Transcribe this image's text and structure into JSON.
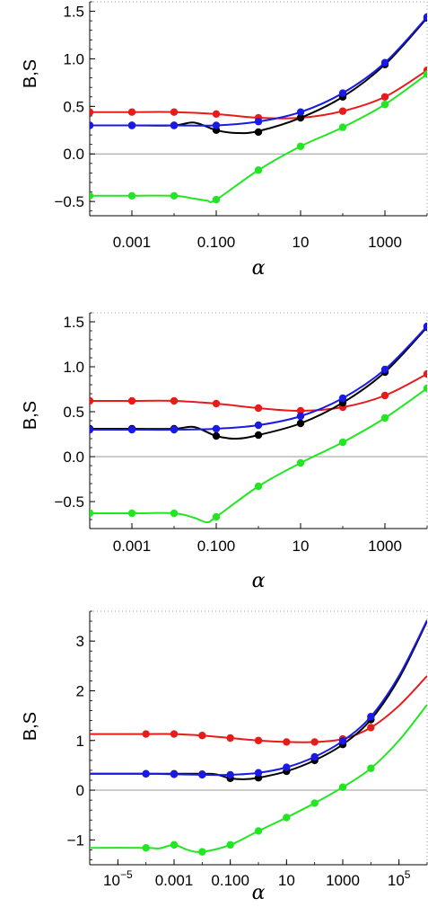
{
  "chart_data": [
    {
      "type": "line",
      "ylabel": "B,S",
      "xlabel": "α",
      "xscale": "log",
      "xlim": [
        0.0001,
        10000
      ],
      "ylim": [
        -0.65,
        1.6
      ],
      "x_ticks": [
        {
          "v": 0.001,
          "label": "0.001"
        },
        {
          "v": 0.1,
          "label": "0.100"
        },
        {
          "v": 10,
          "label": "10"
        },
        {
          "v": 1000,
          "label": "1000"
        }
      ],
      "y_ticks": [
        {
          "v": -0.5,
          "label": "−0.5"
        },
        {
          "v": 0.0,
          "label": "0.0"
        },
        {
          "v": 0.5,
          "label": "0.5"
        },
        {
          "v": 1.0,
          "label": "1.0"
        },
        {
          "v": 1.5,
          "label": "1.5"
        }
      ],
      "zero_line": true,
      "series": [
        {
          "color": "#e81b1b",
          "x": [
            0.0001,
            0.001,
            0.01,
            0.1,
            1,
            10,
            100,
            1000,
            10000
          ],
          "y": [
            0.44,
            0.44,
            0.44,
            0.42,
            0.38,
            0.38,
            0.45,
            0.6,
            0.88
          ],
          "markers_x": [
            0.0001,
            0.001,
            0.01,
            0.1,
            1,
            10,
            100,
            1000,
            10000
          ],
          "markers_y": [
            0.44,
            0.44,
            0.44,
            0.42,
            0.38,
            0.38,
            0.45,
            0.6,
            0.88
          ]
        },
        {
          "color": "#000000",
          "x": [
            0.0001,
            0.001,
            0.01,
            0.03,
            0.1,
            0.3,
            1,
            10,
            100,
            1000,
            10000
          ],
          "y": [
            0.3,
            0.3,
            0.3,
            0.33,
            0.25,
            0.22,
            0.24,
            0.38,
            0.6,
            0.94,
            1.43
          ],
          "markers_x": [
            0.0001,
            0.001,
            0.01,
            0.1,
            1,
            10,
            100,
            1000,
            10000
          ],
          "markers_y": [
            0.3,
            0.3,
            0.3,
            0.25,
            0.23,
            0.38,
            0.6,
            0.94,
            1.43
          ]
        },
        {
          "color": "#1a1ae6",
          "x": [
            0.0001,
            0.001,
            0.01,
            0.1,
            1,
            10,
            100,
            1000,
            10000
          ],
          "y": [
            0.3,
            0.3,
            0.3,
            0.3,
            0.34,
            0.44,
            0.64,
            0.96,
            1.44
          ],
          "markers_x": [
            0.0001,
            0.001,
            0.01,
            0.1,
            1,
            10,
            100,
            1000,
            10000
          ],
          "markers_y": [
            0.3,
            0.3,
            0.3,
            0.3,
            0.34,
            0.44,
            0.64,
            0.96,
            1.44
          ]
        },
        {
          "color": "#22e622",
          "x": [
            0.0001,
            0.001,
            0.01,
            0.03,
            0.06,
            0.1,
            1,
            10,
            100,
            1000,
            10000
          ],
          "y": [
            -0.44,
            -0.44,
            -0.44,
            -0.47,
            -0.49,
            -0.48,
            -0.17,
            0.08,
            0.28,
            0.52,
            0.84
          ],
          "markers_x": [
            0.0001,
            0.001,
            0.01,
            0.1,
            1,
            10,
            100,
            1000,
            10000
          ],
          "markers_y": [
            -0.44,
            -0.44,
            -0.44,
            -0.48,
            -0.17,
            0.08,
            0.28,
            0.52,
            0.84
          ]
        }
      ]
    },
    {
      "type": "line",
      "ylabel": "B,S",
      "xlabel": "α",
      "xscale": "log",
      "xlim": [
        0.0001,
        10000
      ],
      "ylim": [
        -0.8,
        1.6
      ],
      "x_ticks": [
        {
          "v": 0.001,
          "label": "0.001"
        },
        {
          "v": 0.1,
          "label": "0.100"
        },
        {
          "v": 10,
          "label": "10"
        },
        {
          "v": 1000,
          "label": "1000"
        }
      ],
      "y_ticks": [
        {
          "v": -0.5,
          "label": "−0.5"
        },
        {
          "v": 0.0,
          "label": "0.0"
        },
        {
          "v": 0.5,
          "label": "0.5"
        },
        {
          "v": 1.0,
          "label": "1.0"
        },
        {
          "v": 1.5,
          "label": "1.5"
        }
      ],
      "zero_line": true,
      "series": [
        {
          "color": "#e81b1b",
          "x": [
            0.0001,
            0.001,
            0.01,
            0.1,
            1,
            10,
            100,
            1000,
            10000
          ],
          "y": [
            0.62,
            0.62,
            0.62,
            0.59,
            0.54,
            0.51,
            0.55,
            0.68,
            0.92
          ],
          "markers_x": [
            0.0001,
            0.001,
            0.01,
            0.1,
            1,
            10,
            100,
            1000,
            10000
          ],
          "markers_y": [
            0.62,
            0.62,
            0.62,
            0.59,
            0.54,
            0.51,
            0.55,
            0.68,
            0.92
          ]
        },
        {
          "color": "#000000",
          "x": [
            0.0001,
            0.001,
            0.01,
            0.03,
            0.1,
            0.3,
            1,
            10,
            100,
            1000,
            10000
          ],
          "y": [
            0.31,
            0.31,
            0.31,
            0.33,
            0.23,
            0.2,
            0.24,
            0.37,
            0.6,
            0.94,
            1.44
          ],
          "markers_x": [
            0.0001,
            0.001,
            0.01,
            0.1,
            1,
            10,
            100,
            1000,
            10000
          ],
          "markers_y": [
            0.31,
            0.31,
            0.31,
            0.23,
            0.24,
            0.37,
            0.6,
            0.94,
            1.44
          ]
        },
        {
          "color": "#1a1ae6",
          "x": [
            0.0001,
            0.001,
            0.01,
            0.1,
            1,
            10,
            100,
            1000,
            10000
          ],
          "y": [
            0.3,
            0.3,
            0.3,
            0.31,
            0.35,
            0.45,
            0.65,
            0.97,
            1.45
          ],
          "markers_x": [
            0.0001,
            0.001,
            0.01,
            0.1,
            1,
            10,
            100,
            1000,
            10000
          ],
          "markers_y": [
            0.3,
            0.3,
            0.3,
            0.31,
            0.35,
            0.45,
            0.65,
            0.97,
            1.45
          ]
        },
        {
          "color": "#22e622",
          "x": [
            0.0001,
            0.001,
            0.01,
            0.03,
            0.06,
            0.1,
            1,
            10,
            100,
            1000,
            10000
          ],
          "y": [
            -0.63,
            -0.63,
            -0.63,
            -0.68,
            -0.73,
            -0.67,
            -0.33,
            -0.07,
            0.16,
            0.43,
            0.76
          ],
          "markers_x": [
            0.0001,
            0.001,
            0.01,
            0.1,
            1,
            10,
            100,
            1000,
            10000
          ],
          "markers_y": [
            -0.63,
            -0.63,
            -0.63,
            -0.67,
            -0.33,
            -0.07,
            0.16,
            0.43,
            0.76
          ]
        }
      ]
    },
    {
      "type": "line",
      "ylabel": "B,S",
      "xlabel": "α",
      "xscale": "log",
      "xlim": [
        1e-06,
        1000000
      ],
      "ylim": [
        -1.5,
        3.6
      ],
      "x_ticks": [
        {
          "v": 1e-05,
          "label": "10",
          "sup": "−5"
        },
        {
          "v": 0.001,
          "label": "0.001"
        },
        {
          "v": 0.1,
          "label": "0.100"
        },
        {
          "v": 10,
          "label": "10"
        },
        {
          "v": 1000,
          "label": "1000"
        },
        {
          "v": 100000,
          "label": "10",
          "sup": "5"
        }
      ],
      "y_ticks": [
        {
          "v": -1,
          "label": "−1"
        },
        {
          "v": 0,
          "label": "0"
        },
        {
          "v": 1,
          "label": "1"
        },
        {
          "v": 2,
          "label": "2"
        },
        {
          "v": 3,
          "label": "3"
        }
      ],
      "zero_line": true,
      "series": [
        {
          "color": "#e81b1b",
          "x": [
            1e-06,
            0.0001,
            0.001,
            0.01,
            0.1,
            1,
            10,
            100,
            1000,
            10000,
            100000,
            1000000
          ],
          "y": [
            1.13,
            1.13,
            1.13,
            1.1,
            1.05,
            1.0,
            0.97,
            0.97,
            1.03,
            1.26,
            1.7,
            2.3
          ],
          "markers_x": [
            0.0001,
            0.001,
            0.01,
            0.1,
            1,
            10,
            100,
            1000,
            10000
          ],
          "markers_y": [
            1.13,
            1.13,
            1.1,
            1.05,
            1.0,
            0.97,
            0.97,
            1.03,
            1.26
          ]
        },
        {
          "color": "#000000",
          "x": [
            1e-06,
            0.0001,
            0.001,
            0.01,
            0.03,
            0.1,
            0.3,
            1,
            10,
            100,
            1000,
            10000,
            100000,
            1000000
          ],
          "y": [
            0.33,
            0.33,
            0.33,
            0.33,
            0.32,
            0.24,
            0.22,
            0.25,
            0.38,
            0.6,
            0.92,
            1.42,
            2.25,
            3.4
          ],
          "markers_x": [
            0.0001,
            0.001,
            0.01,
            0.1,
            1,
            10,
            100,
            1000,
            10000
          ],
          "markers_y": [
            0.33,
            0.33,
            0.32,
            0.24,
            0.25,
            0.38,
            0.6,
            0.92,
            1.42
          ]
        },
        {
          "color": "#1a1ae6",
          "x": [
            1e-06,
            0.0001,
            0.001,
            0.01,
            0.1,
            1,
            10,
            100,
            1000,
            10000,
            100000,
            1000000
          ],
          "y": [
            0.33,
            0.33,
            0.32,
            0.31,
            0.31,
            0.35,
            0.46,
            0.67,
            0.99,
            1.48,
            2.3,
            3.42
          ],
          "markers_x": [
            0.0001,
            0.001,
            0.01,
            0.1,
            1,
            10,
            100,
            1000,
            10000
          ],
          "markers_y": [
            0.33,
            0.32,
            0.31,
            0.31,
            0.35,
            0.46,
            0.67,
            0.99,
            1.48
          ]
        },
        {
          "color": "#22e622",
          "x": [
            1e-06,
            0.0001,
            0.0003,
            0.001,
            0.003,
            0.01,
            0.1,
            1,
            10,
            100,
            1000,
            10000,
            100000,
            1000000
          ],
          "y": [
            -1.16,
            -1.16,
            -1.17,
            -1.1,
            -1.2,
            -1.24,
            -1.1,
            -0.82,
            -0.55,
            -0.26,
            0.06,
            0.44,
            1.0,
            1.72
          ],
          "markers_x": [
            0.0001,
            0.001,
            0.01,
            0.1,
            1,
            10,
            100,
            1000,
            10000
          ],
          "markers_y": [
            -1.16,
            -1.1,
            -1.24,
            -1.1,
            -0.82,
            -0.55,
            -0.26,
            0.06,
            0.44
          ]
        }
      ]
    }
  ]
}
